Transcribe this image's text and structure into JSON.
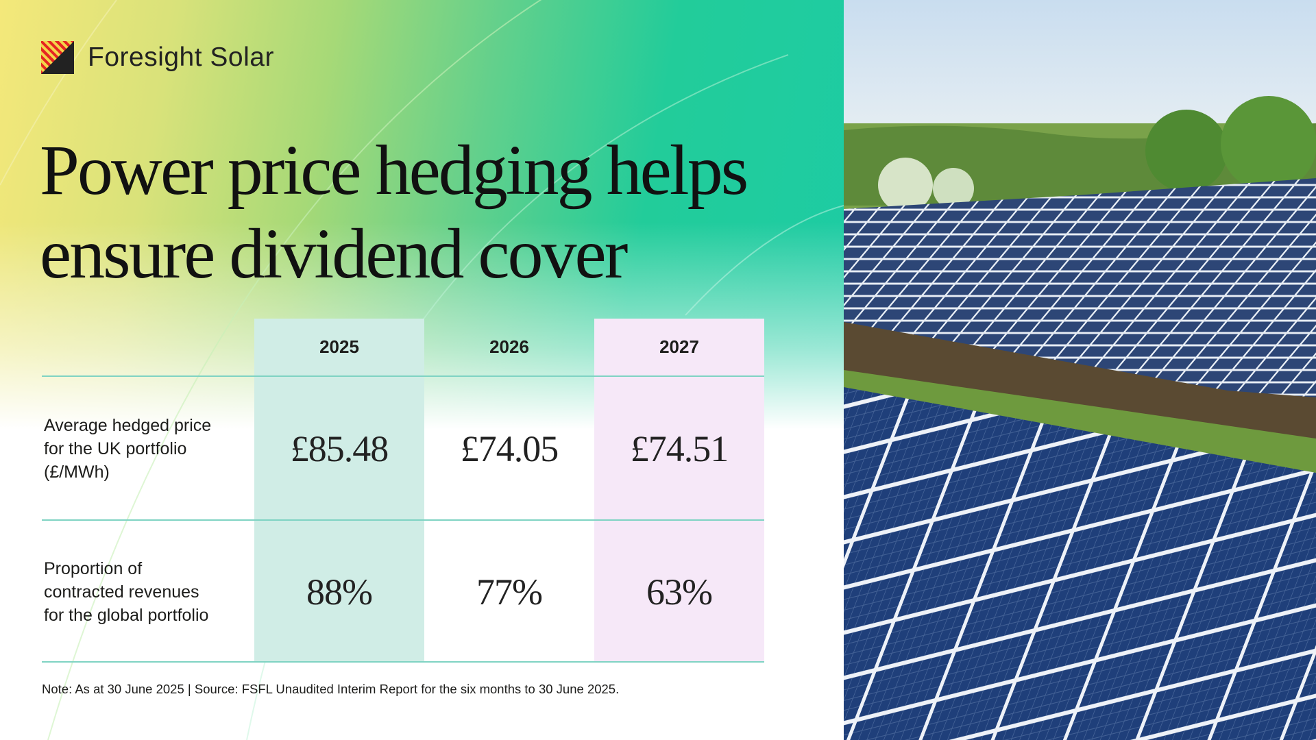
{
  "brand": {
    "name": "Foresight Solar",
    "logo_colors": [
      "#e52523",
      "#f4d54a",
      "#222222"
    ]
  },
  "title": {
    "line1": "Power price hedging helps",
    "line2": "ensure dividend cover"
  },
  "table": {
    "columns": [
      "2025",
      "2026",
      "2027"
    ],
    "column_colors": [
      "#d0ede6",
      "#ffffff",
      "#f6e8f8"
    ],
    "rows": [
      {
        "label_lines": [
          "Average hedged price",
          "for the UK portfolio",
          "(£/MWh)"
        ],
        "values": [
          "£85.48",
          "£74.05",
          "£74.51"
        ]
      },
      {
        "label_lines": [
          "Proportion of",
          "contracted revenues",
          "for the global portfolio"
        ],
        "values": [
          "88%",
          "77%",
          "63%"
        ]
      }
    ]
  },
  "note": "Note: As at 30 June 2025 | Source: FSFL Unaudited Interim Report for the six months to 30 June 2025.",
  "colors": {
    "divider": "#7fd3c3",
    "accent_teal": "#1ccba6"
  }
}
